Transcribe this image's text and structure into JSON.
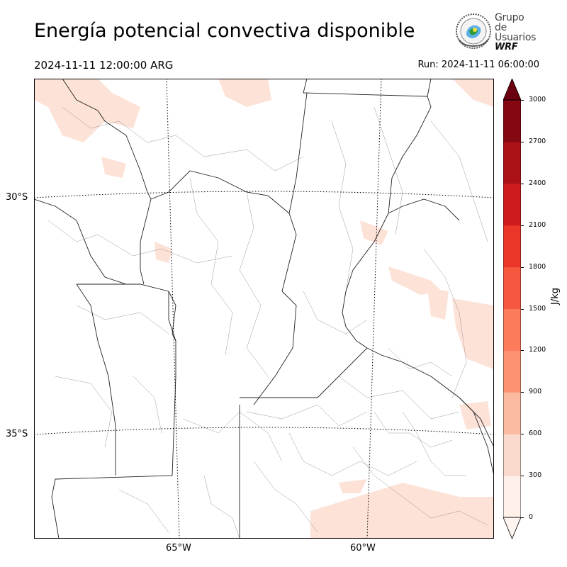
{
  "header": {
    "title": "Energía potencial convectiva disponible",
    "valid_time": "2024-11-11 12:00:00 ARG",
    "run_time": "Run: 2024-11-11 06:00:00"
  },
  "logo": {
    "line1": "Grupo de",
    "line2": "Usuarios",
    "line3": "WRF"
  },
  "map": {
    "lat_labels": [
      "30°S",
      "35°S"
    ],
    "lon_labels": [
      "65°W",
      "60°W"
    ],
    "field_color": "#fde2d8"
  },
  "colorbar": {
    "unit": "J/kg",
    "ticks": [
      "3000",
      "2700",
      "2400",
      "2100",
      "1800",
      "1500",
      "1200",
      "900",
      "600",
      "300",
      "0"
    ],
    "levels": [
      0,
      300,
      600,
      900,
      1200,
      1500,
      1800,
      2100,
      2400,
      2700,
      3000
    ],
    "colors": [
      "#fff0ea",
      "#f8d9cc",
      "#fcbba1",
      "#fc9272",
      "#fb7b5b",
      "#f5573f",
      "#ea3729",
      "#cf1b1e",
      "#aa1217",
      "#840711"
    ],
    "extend_high_color": "#6b0010",
    "extend_low_color": "#fff5f0"
  }
}
